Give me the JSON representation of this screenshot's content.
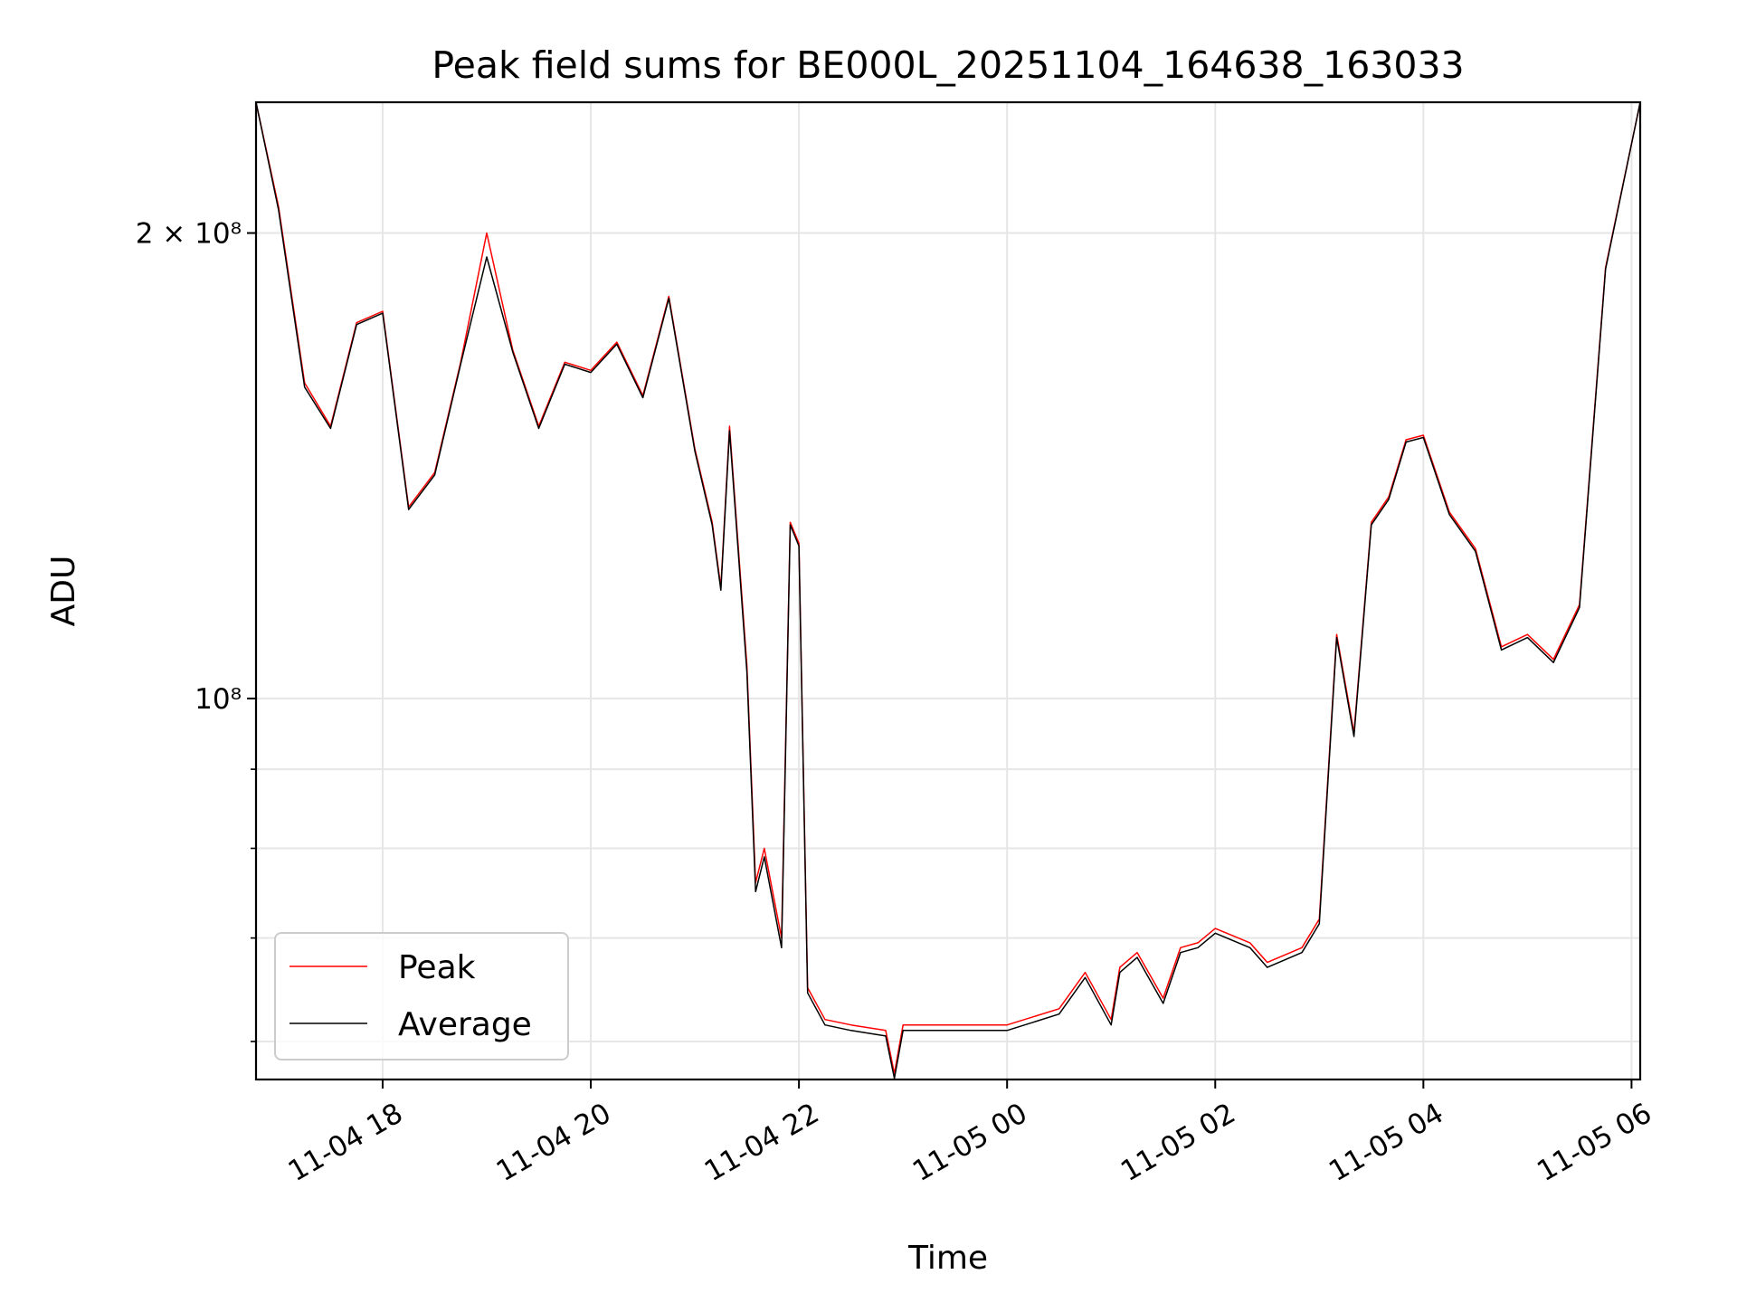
{
  "chart_data": {
    "type": "line",
    "title": "Peak field sums for BE000L_20251104_164638_163033",
    "xlabel": "Time",
    "ylabel": "ADU",
    "y_scale": "log",
    "xlim": [
      "2025-11-04 16:47",
      "2025-11-05 06:05"
    ],
    "ylim": [
      56700000,
      243000000
    ],
    "x_ticks": [
      {
        "value": "2025-11-04 18:00",
        "label": "11-04 18"
      },
      {
        "value": "2025-11-04 20:00",
        "label": "11-04 20"
      },
      {
        "value": "2025-11-04 22:00",
        "label": "11-04 22"
      },
      {
        "value": "2025-11-05 00:00",
        "label": "11-05 00"
      },
      {
        "value": "2025-11-05 02:00",
        "label": "11-05 02"
      },
      {
        "value": "2025-11-05 04:00",
        "label": "11-05 04"
      },
      {
        "value": "2025-11-05 06:00",
        "label": "11-05 06"
      }
    ],
    "y_major_ticks": [
      {
        "value": 200000000,
        "label": "2 × 10⁸"
      },
      {
        "value": 100000000,
        "label": "10⁸"
      }
    ],
    "y_minor_ticks": [
      60000000,
      70000000,
      80000000,
      90000000
    ],
    "grid": true,
    "legend_position": "lower left",
    "series": [
      {
        "name": "Peak",
        "color": "#ff0000",
        "x": [
          "2025-11-04 16:47",
          "2025-11-04 17:00",
          "2025-11-04 17:15",
          "2025-11-04 17:30",
          "2025-11-04 17:45",
          "2025-11-04 18:00",
          "2025-11-04 18:15",
          "2025-11-04 18:30",
          "2025-11-04 18:45",
          "2025-11-04 19:00",
          "2025-11-04 19:15",
          "2025-11-04 19:30",
          "2025-11-04 19:45",
          "2025-11-04 20:00",
          "2025-11-04 20:15",
          "2025-11-04 20:30",
          "2025-11-04 20:45",
          "2025-11-04 21:00",
          "2025-11-04 21:10",
          "2025-11-04 21:15",
          "2025-11-04 21:20",
          "2025-11-04 21:30",
          "2025-11-04 21:35",
          "2025-11-04 21:40",
          "2025-11-04 21:50",
          "2025-11-04 21:55",
          "2025-11-04 22:00",
          "2025-11-04 22:05",
          "2025-11-04 22:15",
          "2025-11-04 22:30",
          "2025-11-04 22:50",
          "2025-11-04 22:55",
          "2025-11-04 23:00",
          "2025-11-04 23:30",
          "2025-11-05 00:00",
          "2025-11-05 00:30",
          "2025-11-05 00:45",
          "2025-11-05 01:00",
          "2025-11-05 01:05",
          "2025-11-05 01:15",
          "2025-11-05 01:30",
          "2025-11-05 01:40",
          "2025-11-05 01:50",
          "2025-11-05 02:00",
          "2025-11-05 02:20",
          "2025-11-05 02:30",
          "2025-11-05 02:50",
          "2025-11-05 03:00",
          "2025-11-05 03:10",
          "2025-11-05 03:20",
          "2025-11-05 03:30",
          "2025-11-05 03:40",
          "2025-11-05 03:50",
          "2025-11-05 04:00",
          "2025-11-05 04:15",
          "2025-11-05 04:30",
          "2025-11-05 04:45",
          "2025-11-05 05:00",
          "2025-11-05 05:15",
          "2025-11-05 05:30",
          "2025-11-05 05:45",
          "2025-11-05 06:05"
        ],
        "values": [
          243000000,
          208000000,
          160000000,
          150000000,
          175000000,
          178000000,
          133000000,
          140000000,
          165000000,
          200000000,
          168000000,
          150000000,
          165000000,
          163000000,
          170000000,
          157000000,
          182000000,
          145000000,
          130000000,
          118000000,
          150000000,
          105000000,
          76000000,
          80000000,
          70000000,
          130000000,
          126000000,
          65000000,
          62000000,
          61500000,
          61000000,
          57200000,
          61500000,
          61500000,
          61500000,
          63000000,
          66500000,
          62000000,
          67000000,
          68500000,
          64000000,
          69000000,
          69500000,
          71000000,
          69500000,
          67500000,
          69000000,
          72000000,
          110000000,
          95000000,
          130000000,
          135000000,
          147000000,
          148000000,
          132000000,
          125000000,
          108000000,
          110000000,
          106000000,
          115000000,
          190000000,
          243000000
        ]
      },
      {
        "name": "Average",
        "color": "#000000",
        "x": [
          "2025-11-04 16:47",
          "2025-11-04 17:00",
          "2025-11-04 17:15",
          "2025-11-04 17:30",
          "2025-11-04 17:45",
          "2025-11-04 18:00",
          "2025-11-04 18:15",
          "2025-11-04 18:30",
          "2025-11-04 18:45",
          "2025-11-04 19:00",
          "2025-11-04 19:15",
          "2025-11-04 19:30",
          "2025-11-04 19:45",
          "2025-11-04 20:00",
          "2025-11-04 20:15",
          "2025-11-04 20:30",
          "2025-11-04 20:45",
          "2025-11-04 21:00",
          "2025-11-04 21:10",
          "2025-11-04 21:15",
          "2025-11-04 21:20",
          "2025-11-04 21:30",
          "2025-11-04 21:35",
          "2025-11-04 21:40",
          "2025-11-04 21:50",
          "2025-11-04 21:55",
          "2025-11-04 22:00",
          "2025-11-04 22:05",
          "2025-11-04 22:15",
          "2025-11-04 22:30",
          "2025-11-04 22:50",
          "2025-11-04 22:55",
          "2025-11-04 23:00",
          "2025-11-04 23:30",
          "2025-11-05 00:00",
          "2025-11-05 00:30",
          "2025-11-05 00:45",
          "2025-11-05 01:00",
          "2025-11-05 01:05",
          "2025-11-05 01:15",
          "2025-11-05 01:30",
          "2025-11-05 01:40",
          "2025-11-05 01:50",
          "2025-11-05 02:00",
          "2025-11-05 02:20",
          "2025-11-05 02:30",
          "2025-11-05 02:50",
          "2025-11-05 03:00",
          "2025-11-05 03:10",
          "2025-11-05 03:20",
          "2025-11-05 03:30",
          "2025-11-05 03:40",
          "2025-11-05 03:50",
          "2025-11-05 04:00",
          "2025-11-05 04:15",
          "2025-11-05 04:30",
          "2025-11-05 04:45",
          "2025-11-05 05:00",
          "2025-11-05 05:15",
          "2025-11-05 05:30",
          "2025-11-05 05:45",
          "2025-11-05 06:05"
        ],
        "values": [
          243000000,
          207000000,
          159000000,
          149500000,
          174500000,
          177500000,
          132500000,
          139500000,
          164500000,
          193000000,
          167500000,
          149500000,
          164500000,
          162500000,
          169500000,
          156500000,
          181500000,
          144500000,
          129500000,
          117500000,
          149000000,
          104000000,
          75000000,
          79000000,
          69000000,
          129500000,
          125500000,
          64500000,
          61500000,
          61000000,
          60500000,
          56800000,
          61000000,
          61000000,
          61000000,
          62500000,
          66000000,
          61500000,
          66500000,
          68000000,
          63500000,
          68500000,
          69000000,
          70500000,
          69000000,
          67000000,
          68500000,
          71500000,
          109500000,
          94500000,
          129500000,
          134500000,
          146500000,
          147500000,
          131500000,
          124500000,
          107500000,
          109500000,
          105500000,
          114500000,
          189500000,
          243000000
        ]
      }
    ]
  }
}
